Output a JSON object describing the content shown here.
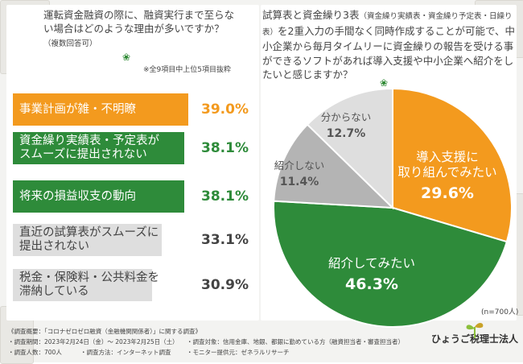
{
  "left_question": {
    "text": "運転資金融資の際に、融資実行まで至らない場合はどのような理由が多いですか？",
    "note": "（複数回答可）",
    "subnote": "※全9項目中上位5項目抜粋"
  },
  "right_question": {
    "text_a": "試算表と資金繰り3表",
    "text_paren": "（資金繰り実績表・資金繰り予定表・日繰り表）",
    "text_b": "を2重入力の手間なく同時作成することが可能で、中小企業から毎月タイムリーに資金繰りの報告を受ける事ができるソフトがあれば導入支援や中小企業へ紹介をしたいと感じますか？"
  },
  "sample_note": "(n=700人)",
  "survey": {
    "overview": "《調査概要：「コロナゼロゼロ融資（金融機関関係者）」に関する調査》",
    "period": "・調査期間：2023年2月24日（金）～ 2023年2月25日（土）",
    "target": "・調査対象：信用金庫、地銀、都銀に勤めている方（融資担当者・審査担当者）",
    "people": "・調査人数：700人",
    "method": "・調査方法：インターネット調査",
    "provider": "・モニター提供元：ゼネラルリサーチ"
  },
  "logo": {
    "text": "ひょうご税理士法人"
  },
  "colors": {
    "orange": "#f39a1e",
    "green": "#2e8b3a",
    "gray": "#b4b4b4",
    "light_gray": "#dedede"
  },
  "chart_data": [
    {
      "type": "bar",
      "orientation": "horizontal",
      "categories": [
        "事業計画が雑・不明瞭",
        "資金繰り実績表・予定表がスムーズに提出されない",
        "将来の損益収支の動向",
        "直近の試算表がスムーズに提出されない",
        "税金・保険料・公共料金を滞納している"
      ],
      "labels": [
        [
          "事業計画が雑・不明瞭"
        ],
        [
          "資金繰り実績表・予定表が",
          "スムーズに提出されない"
        ],
        [
          "将来の損益収支の動向"
        ],
        [
          "直近の試算表がスムーズに",
          "提出されない"
        ],
        [
          "税金・保険料・公共料金を",
          "滞納している"
        ]
      ],
      "values": [
        39.0,
        38.1,
        38.1,
        33.1,
        30.9
      ],
      "value_labels": [
        "39.0%",
        "38.1%",
        "38.1%",
        "33.1%",
        "30.9%"
      ],
      "unit": "%"
    },
    {
      "type": "pie",
      "labels": [
        "導入支援に取り組んでみたい",
        "紹介してみたい",
        "紹介しない",
        "分からない"
      ],
      "label_lines": [
        [
          "導入支援に",
          "取り組んでみたい"
        ],
        [
          "紹介してみたい"
        ],
        [
          "紹介しない"
        ],
        [
          "分からない"
        ]
      ],
      "values": [
        29.6,
        46.3,
        11.4,
        12.7
      ],
      "value_labels": [
        "29.6%",
        "46.3%",
        "11.4%",
        "12.7%"
      ],
      "unit": "%"
    }
  ]
}
